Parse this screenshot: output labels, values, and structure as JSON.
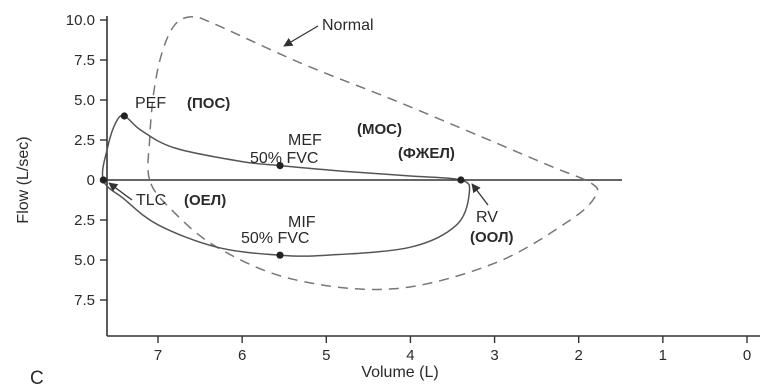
{
  "panel_label": "C",
  "chart_data": {
    "type": "line",
    "title": "",
    "xlabel": "Volume (L)",
    "ylabel": "Flow (L/sec)",
    "x_reversed": true,
    "xlim": [
      7.7,
      0
    ],
    "ylim": [
      -8.5,
      10.0
    ],
    "x_ticks": [
      7,
      6,
      5,
      4,
      3,
      2,
      1,
      0
    ],
    "x_tick_labels": [
      "7",
      "6",
      "5",
      "4",
      "3",
      "2",
      "1",
      "0"
    ],
    "y_ticks": [
      10,
      7.5,
      5,
      2.5,
      0,
      -2.5,
      -5,
      -7.5
    ],
    "y_tick_labels": [
      "10.0",
      "7.5",
      "5.0",
      "2.5",
      "0",
      "2.5",
      "5.0",
      "7.5"
    ],
    "grid": false,
    "zero_line": true,
    "series": [
      {
        "name": "Normal",
        "style": "dashed",
        "color": "#777777",
        "x": [
          7.1,
          7.1,
          7.05,
          6.95,
          6.8,
          6.6,
          6.35,
          5.3,
          4.2,
          3.2,
          2.35,
          1.85,
          1.8,
          2.1,
          3.0,
          4.2,
          5.4,
          6.3,
          6.85,
          7.1
        ],
        "y": [
          0,
          2.5,
          5.5,
          8.0,
          9.7,
          10.2,
          9.8,
          7.3,
          5.0,
          2.8,
          0.9,
          -0.2,
          -1.0,
          -2.5,
          -5.2,
          -6.8,
          -6.2,
          -4.2,
          -1.8,
          0
        ]
      },
      {
        "name": "",
        "style": "solid",
        "color": "#555555",
        "x": [
          7.65,
          7.6,
          7.5,
          7.4,
          7.2,
          6.8,
          6.0,
          5.55,
          4.8,
          4.0,
          3.4,
          3.3,
          3.45,
          4.0,
          5.0,
          5.55,
          6.3,
          7.0,
          7.4,
          7.65
        ],
        "y": [
          0,
          2.0,
          3.6,
          4.0,
          3.1,
          2.0,
          1.15,
          0.9,
          0.55,
          0.25,
          0,
          -0.8,
          -2.8,
          -4.2,
          -4.7,
          -4.7,
          -4.2,
          -2.8,
          -1.2,
          0
        ]
      }
    ],
    "points": [
      {
        "x": 7.4,
        "y": 4.0
      },
      {
        "x": 5.55,
        "y": 0.9
      },
      {
        "x": 7.65,
        "y": 0
      },
      {
        "x": 3.4,
        "y": 0
      },
      {
        "x": 5.55,
        "y": -4.7
      }
    ],
    "annotations": {
      "normal": "Normal",
      "pef": "PEF",
      "pef_ru": "(ПОС)",
      "mef": "MEF",
      "mef_ru": "(МОС)",
      "mef_fvc": "50% FVC",
      "mef_fvc_ru": "(ФЖЕЛ)",
      "tlc": "TLC",
      "tlc_ru": "(ОЕЛ)",
      "mif": "MIF",
      "mif_fvc": "50% FVC",
      "rv": "RV",
      "rv_ru": "(ООЛ)"
    }
  }
}
